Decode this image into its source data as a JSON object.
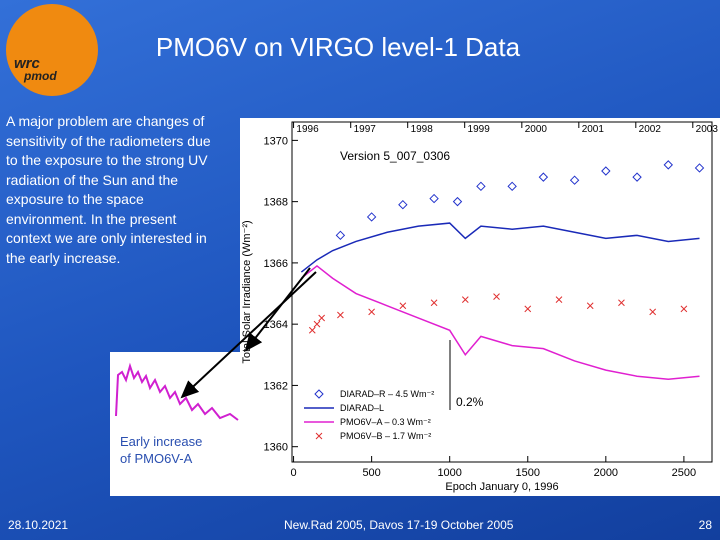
{
  "slide": {
    "title": "PMO6V on VIRGO level-1 Data",
    "logo": [
      "wrc",
      "pmod"
    ],
    "body": "A major problem are changes of sensitivity of the radiometers due to the exposure to the strong UV radiation of the Sun and the exposure to the space environment. In the present context we are only interested in the early increase.",
    "inset_caption": "Early increase of PMO6V-A",
    "footer": {
      "date": "28.10.2021",
      "event": "New.Rad 2005, Davos 17-19 October 2005",
      "page": "28"
    }
  },
  "chart_data": {
    "type": "line",
    "annotations": [
      "Version 5_007_0306",
      "0.2%"
    ],
    "x_label": "Epoch January 0, 1996",
    "y_label": "Total Solar Irradiance (Wm⁻²)",
    "xlim": [
      -10,
      2680
    ],
    "ylim": [
      1359.5,
      1370.6
    ],
    "xticks": [
      0,
      500,
      1000,
      1500,
      2000,
      2500
    ],
    "yticks": [
      1360,
      1362,
      1364,
      1366,
      1368,
      1370
    ],
    "x2ticks": [
      {
        "value": 0,
        "label": "1996"
      },
      {
        "value": 366,
        "label": "1997"
      },
      {
        "value": 731,
        "label": "1998"
      },
      {
        "value": 1096,
        "label": "1999"
      },
      {
        "value": 1462,
        "label": "2000"
      },
      {
        "value": 1827,
        "label": "2001"
      },
      {
        "value": 2192,
        "label": "2002"
      },
      {
        "value": 2557,
        "label": "2003"
      }
    ],
    "series": [
      {
        "name": "DIARAD–R – 4.5 Wm⁻²",
        "color": "#2233cc",
        "marker": "diamond",
        "x": [
          300,
          500,
          700,
          900,
          1050,
          1200,
          1400,
          1600,
          1800,
          2000,
          2200,
          2400,
          2600
        ],
        "values": [
          1366.9,
          1367.5,
          1367.9,
          1368.1,
          1368.0,
          1368.5,
          1368.5,
          1368.8,
          1368.7,
          1369.0,
          1368.8,
          1369.2,
          1369.1
        ]
      },
      {
        "name": "DIARAD–L",
        "color": "#1a2ab8",
        "marker": "line",
        "x": [
          50,
          150,
          250,
          400,
          600,
          800,
          1000,
          1100,
          1200,
          1400,
          1600,
          1800,
          2000,
          2200,
          2400,
          2600
        ],
        "values": [
          1365.7,
          1366.1,
          1366.4,
          1366.7,
          1367.0,
          1367.2,
          1367.3,
          1366.8,
          1367.2,
          1367.1,
          1367.2,
          1367.0,
          1366.8,
          1366.9,
          1366.7,
          1366.8
        ]
      },
      {
        "name": "PMO6V–A – 0.3 Wm⁻²",
        "color": "#e020d0",
        "marker": "line",
        "x": [
          50,
          150,
          250,
          400,
          600,
          800,
          1000,
          1100,
          1200,
          1400,
          1600,
          1800,
          2000,
          2200,
          2400,
          2600
        ],
        "values": [
          1365.5,
          1365.9,
          1365.5,
          1365.0,
          1364.6,
          1364.2,
          1363.8,
          1363.0,
          1363.6,
          1363.3,
          1363.2,
          1362.8,
          1362.5,
          1362.3,
          1362.2,
          1362.3
        ]
      },
      {
        "name": "PMO6V–B – 1.7 Wm⁻²",
        "color": "#e03030",
        "marker": "x",
        "x": [
          120,
          150,
          180,
          300,
          500,
          700,
          900,
          1100,
          1300,
          1500,
          1700,
          1900,
          2100,
          2300,
          2500
        ],
        "values": [
          1363.8,
          1364.0,
          1364.2,
          1364.3,
          1364.4,
          1364.6,
          1364.7,
          1364.8,
          1364.9,
          1364.5,
          1364.8,
          1364.6,
          1364.7,
          1364.4,
          1364.5
        ]
      }
    ]
  }
}
